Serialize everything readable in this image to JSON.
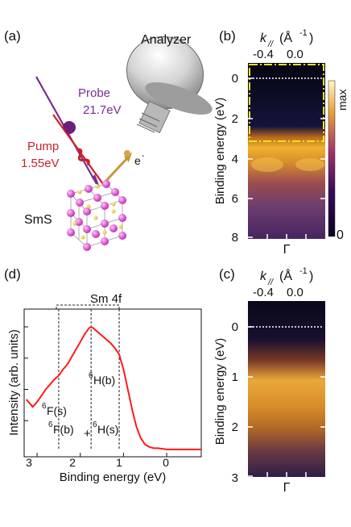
{
  "panels": {
    "a": {
      "label": "(a)",
      "analyzer": "Analyzer",
      "probe": "Probe",
      "probe_energy": "21.7eV",
      "pump": "Pump",
      "pump_energy": "1.55eV",
      "electron": "e",
      "electron_sup": "-",
      "sample": "SmS",
      "colors": {
        "probe": "#7b2d8e",
        "pump": "#cc1f2b",
        "sm_atom": "#e04bd6",
        "s_atom": "#f1d51c"
      }
    },
    "b": {
      "label": "(b)",
      "k_label": "k",
      "k_sub": "//",
      "k_unit": "(Å",
      "k_exp": "-1",
      "k_unit_close": ")",
      "ticks_x": [
        "-0.4",
        "0.0"
      ],
      "ticks_y": [
        "0",
        "2",
        "4",
        "6",
        "8"
      ],
      "ylabel": "Binding energy (eV)",
      "gamma": "Γ",
      "colorbar_max": "max",
      "colorbar_min": "0"
    },
    "c": {
      "label": "(c)",
      "k_label": "k",
      "k_sub": "//",
      "k_unit": "(Å",
      "k_exp": "-1",
      "k_unit_close": ")",
      "ticks_x": [
        "-0.4",
        "0.0"
      ],
      "ticks_y": [
        "0",
        "1",
        "2",
        "3"
      ],
      "ylabel": "Binding energy (eV)",
      "gamma": "Γ"
    },
    "d": {
      "label": "(d)",
      "bracket": "Sm 4f",
      "ylabel": "Intensity (arb. units)",
      "xlabel": "Binding energy (eV)",
      "ticks_x": [
        "3",
        "2",
        "1",
        "0"
      ],
      "ann_6Fs": "F(s)",
      "ann_6Hb": "H(b)",
      "ann_6Fb": "F(b)",
      "ann_plus": "+",
      "ann_6Hs": "H(s)",
      "ann_sup": "6",
      "line_color": "#ff1a1a"
    }
  },
  "chart_data": {
    "type": "line",
    "xlim": [
      3.3,
      -0.8
    ],
    "series": [
      {
        "x": [
          3.25,
          3.1,
          3.0,
          2.9,
          2.8,
          2.7,
          2.6,
          2.5,
          2.4,
          2.3,
          2.2,
          2.1,
          2.0,
          1.9,
          1.8,
          1.75,
          1.7,
          1.6,
          1.5,
          1.4,
          1.3,
          1.2,
          1.1,
          1.0,
          0.9,
          0.8,
          0.7,
          0.6,
          0.5,
          0.4,
          0.3,
          0.2,
          0.0,
          -0.2,
          -0.4,
          -0.6,
          -0.8
        ],
        "y": [
          0.42,
          0.36,
          0.4,
          0.45,
          0.5,
          0.54,
          0.58,
          0.61,
          0.66,
          0.7,
          0.76,
          0.82,
          0.88,
          0.94,
          0.99,
          1.0,
          0.99,
          0.96,
          0.93,
          0.9,
          0.87,
          0.83,
          0.78,
          0.66,
          0.5,
          0.34,
          0.2,
          0.11,
          0.06,
          0.04,
          0.03,
          0.03,
          0.02,
          0.02,
          0.02,
          0.02,
          0.02
        ]
      }
    ],
    "dashed_lines_x": [
      2.5,
      1.75,
      1.1
    ]
  }
}
